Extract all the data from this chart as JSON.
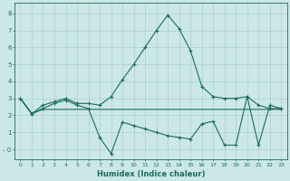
{
  "xlabel": "Humidex (Indice chaleur)",
  "bg_color": "#cce8e6",
  "grid_color": "#aacfcd",
  "line_color": "#1a6b5e",
  "xlim": [
    -0.5,
    23.5
  ],
  "ylim": [
    -0.6,
    8.6
  ],
  "xticks": [
    0,
    1,
    2,
    3,
    4,
    5,
    6,
    7,
    8,
    9,
    10,
    11,
    12,
    13,
    14,
    15,
    16,
    17,
    18,
    19,
    20,
    21,
    22,
    23
  ],
  "yticks": [
    0,
    1,
    2,
    3,
    4,
    5,
    6,
    7,
    8
  ],
  "ytick_labels": [
    "- 0",
    "1",
    "2",
    "3",
    "4",
    "5",
    "6",
    "7",
    "8"
  ],
  "line1_x": [
    0,
    1,
    2,
    3,
    4,
    5,
    6,
    7,
    8,
    9,
    10,
    11,
    12,
    13,
    14,
    15,
    16,
    17,
    18,
    19,
    20,
    21,
    22,
    23
  ],
  "line1_y": [
    3.0,
    2.1,
    2.6,
    2.8,
    3.0,
    2.7,
    2.7,
    2.6,
    3.1,
    4.1,
    5.0,
    6.0,
    7.0,
    7.9,
    7.1,
    5.8,
    3.7,
    3.1,
    3.0,
    3.0,
    3.1,
    2.6,
    2.4,
    2.4
  ],
  "line2_x": [
    0,
    1,
    2,
    3,
    4,
    5,
    6,
    7,
    8,
    9,
    10,
    11,
    12,
    13,
    14,
    15,
    16,
    17,
    18,
    19,
    20,
    21,
    22,
    23
  ],
  "line2_y": [
    3.0,
    2.1,
    2.4,
    2.7,
    2.9,
    2.6,
    2.4,
    0.7,
    -0.25,
    1.6,
    1.4,
    1.2,
    1.0,
    0.8,
    0.7,
    0.6,
    1.5,
    1.65,
    0.25,
    0.25,
    3.1,
    0.25,
    2.6,
    2.4
  ],
  "line3_x": [
    0,
    1,
    2,
    3,
    4,
    5,
    6,
    7,
    8,
    9,
    10,
    11,
    12,
    13,
    14,
    15,
    16,
    17,
    18,
    19,
    20,
    21,
    22,
    23
  ],
  "line3_y": [
    3.0,
    2.1,
    2.35,
    2.35,
    2.35,
    2.35,
    2.35,
    2.35,
    2.35,
    2.35,
    2.35,
    2.35,
    2.35,
    2.35,
    2.35,
    2.35,
    2.35,
    2.35,
    2.35,
    2.35,
    2.35,
    2.35,
    2.35,
    2.35
  ]
}
